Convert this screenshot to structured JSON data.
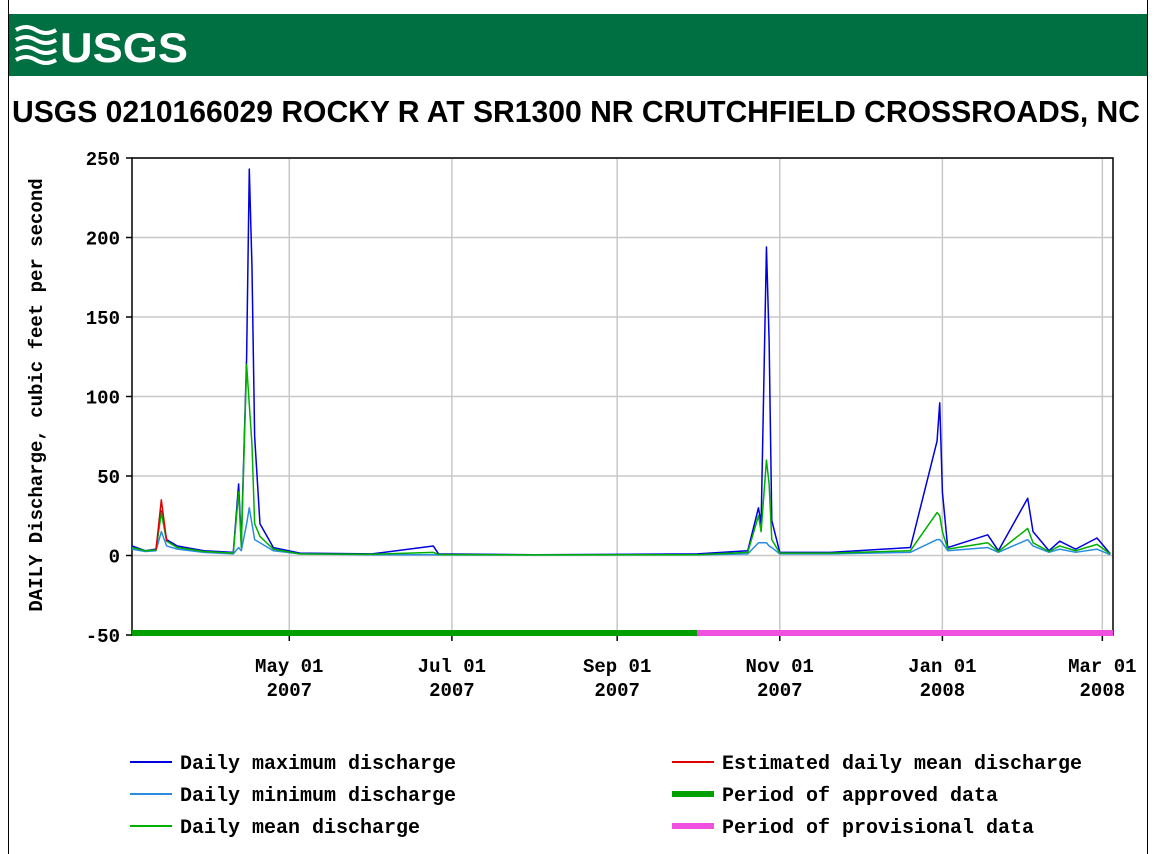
{
  "chart_data": {
    "type": "line",
    "logo": "USGS",
    "title": "USGS 0210166029 ROCKY R AT SR1300 NR CRUTCHFIELD CROSSROADS, NC",
    "y_label": "DAILY Discharge, cubic feet per second",
    "x": [
      "2007-03-03",
      "2007-03-08",
      "2007-03-12",
      "2007-03-14",
      "2007-03-16",
      "2007-03-20",
      "2007-03-30",
      "2007-04-10",
      "2007-04-12",
      "2007-04-13",
      "2007-04-15",
      "2007-04-16",
      "2007-04-17",
      "2007-04-18",
      "2007-04-20",
      "2007-04-25",
      "2007-05-05",
      "2007-06-01",
      "2007-06-24",
      "2007-06-26",
      "2007-08-01",
      "2007-10-01",
      "2007-10-20",
      "2007-10-24",
      "2007-10-25",
      "2007-10-27",
      "2007-10-28",
      "2007-10-29",
      "2007-11-01",
      "2007-11-20",
      "2007-12-20",
      "2007-12-30",
      "2007-12-31",
      "2008-01-01",
      "2008-01-03",
      "2008-01-18",
      "2008-01-22",
      "2008-02-02",
      "2008-02-04",
      "2008-02-10",
      "2008-02-14",
      "2008-02-20",
      "2008-02-28",
      "2008-03-04"
    ],
    "series": [
      {
        "name": "Daily maximum discharge",
        "color": "#0000e0",
        "values": [
          6,
          3,
          4,
          28,
          10,
          6,
          3,
          2,
          45,
          8,
          125,
          243,
          182,
          75,
          20,
          5,
          1.5,
          1,
          6,
          1,
          0.5,
          1,
          3,
          30,
          20,
          194,
          135,
          22,
          2,
          2,
          5,
          72,
          96,
          40,
          5,
          13,
          3,
          36,
          15,
          3,
          9,
          4,
          11,
          1
        ]
      },
      {
        "name": "Daily minimum discharge",
        "color": "#2a8ce0",
        "values": [
          4,
          2.5,
          3,
          15,
          6,
          4,
          2,
          1,
          5,
          3,
          20,
          30,
          20,
          10,
          8,
          3,
          1,
          0.5,
          0.5,
          0.4,
          0.3,
          0.4,
          1,
          8,
          8,
          8,
          6,
          5,
          1,
          1,
          2,
          10,
          10,
          8,
          3,
          5,
          2,
          10,
          6,
          2,
          4,
          2,
          4,
          0.5
        ]
      },
      {
        "name": "Daily mean discharge",
        "color": "#00b000",
        "values": [
          5,
          3,
          3.5,
          27,
          9,
          5,
          2.5,
          1.5,
          40,
          5,
          120,
          95,
          70,
          20,
          12,
          4,
          1,
          0.8,
          2,
          0.6,
          0.4,
          0.5,
          2,
          25,
          15,
          60,
          45,
          10,
          1.5,
          1.5,
          3,
          27,
          25,
          15,
          4,
          8,
          2.5,
          17,
          8,
          2.5,
          6,
          3,
          7,
          1
        ]
      },
      {
        "name": "Estimated daily mean discharge",
        "color": "#e00000",
        "values": [
          null,
          null,
          3.5,
          35,
          9,
          null,
          null,
          null,
          null,
          null,
          null,
          null,
          null,
          null,
          null,
          null,
          null,
          null,
          null,
          null,
          null,
          null,
          null,
          null,
          null,
          null,
          null,
          null,
          null,
          null,
          null,
          null,
          null,
          null,
          null,
          null,
          null,
          null,
          null,
          null,
          null,
          null,
          null,
          null
        ]
      }
    ],
    "periods": [
      {
        "name": "Period of approved data",
        "color": "#00a000",
        "start": "2007-03-03",
        "end": "2007-10-01"
      },
      {
        "name": "Period of provisional data",
        "color": "#f050e0",
        "start": "2007-10-01",
        "end": "2008-03-05"
      }
    ],
    "xlim": [
      "2007-03-03",
      "2008-03-05"
    ],
    "xticks": [
      {
        "value": "2007-05-01",
        "label": "May 01\n2007"
      },
      {
        "value": "2007-07-01",
        "label": "Jul 01\n2007"
      },
      {
        "value": "2007-09-01",
        "label": "Sep 01\n2007"
      },
      {
        "value": "2007-11-01",
        "label": "Nov 01\n2007"
      },
      {
        "value": "2008-01-01",
        "label": "Jan 01\n2008"
      },
      {
        "value": "2008-03-01",
        "label": "Mar 01\n2008"
      }
    ],
    "ylim": [
      -50,
      250
    ],
    "yticks": [
      -50,
      0,
      50,
      100,
      150,
      200,
      250
    ],
    "grid": true
  }
}
